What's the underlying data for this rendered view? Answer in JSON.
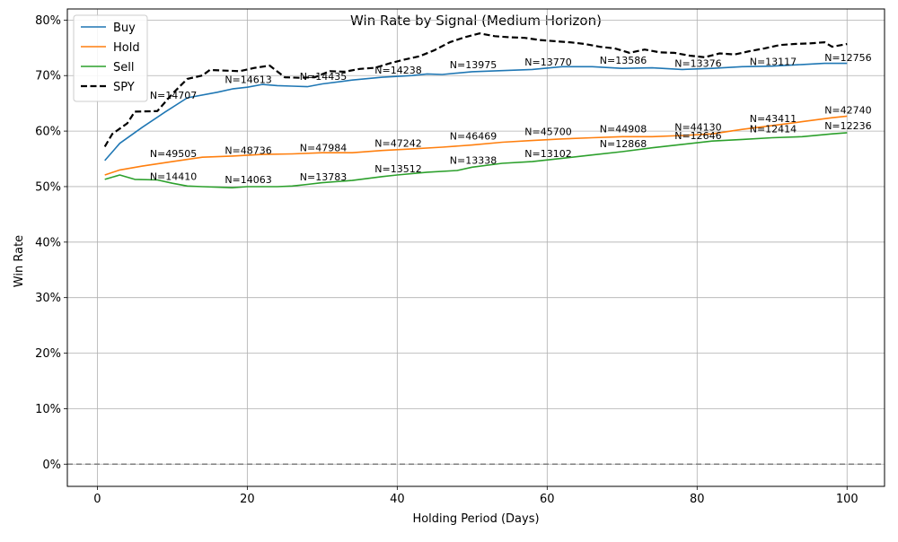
{
  "chart_data": {
    "type": "line",
    "title": "Win Rate by Signal (Medium Horizon)",
    "xlabel": "Holding Period (Days)",
    "ylabel": "Win Rate",
    "xlim": [
      -4,
      105
    ],
    "ylim": [
      -0.04,
      0.82
    ],
    "xticks": [
      0,
      20,
      40,
      60,
      80,
      100
    ],
    "xtick_labels": [
      "0",
      "20",
      "40",
      "60",
      "80",
      "100"
    ],
    "yticks": [
      0,
      0.1,
      0.2,
      0.3,
      0.4,
      0.5,
      0.6,
      0.7,
      0.8
    ],
    "ytick_labels": [
      "0%",
      "10%",
      "20%",
      "30%",
      "40%",
      "50%",
      "60%",
      "70%",
      "80%"
    ],
    "grid": true,
    "legend_position": "top-left",
    "reference_line": {
      "y": 0,
      "style": "dashed",
      "color": "#808080"
    },
    "series": [
      {
        "name": "Buy",
        "color": "#1f77b4",
        "style": "solid",
        "points": [
          [
            1,
            0.547
          ],
          [
            3,
            0.578
          ],
          [
            6,
            0.607
          ],
          [
            9,
            0.634
          ],
          [
            12,
            0.66
          ],
          [
            16,
            0.67
          ],
          [
            18,
            0.676
          ],
          [
            20,
            0.679
          ],
          [
            22,
            0.684
          ],
          [
            24,
            0.682
          ],
          [
            26,
            0.681
          ],
          [
            28,
            0.68
          ],
          [
            30,
            0.685
          ],
          [
            34,
            0.692
          ],
          [
            38,
            0.697
          ],
          [
            42,
            0.7
          ],
          [
            44,
            0.703
          ],
          [
            46,
            0.702
          ],
          [
            50,
            0.707
          ],
          [
            54,
            0.709
          ],
          [
            58,
            0.711
          ],
          [
            62,
            0.716
          ],
          [
            66,
            0.716
          ],
          [
            70,
            0.713
          ],
          [
            74,
            0.714
          ],
          [
            78,
            0.711
          ],
          [
            82,
            0.713
          ],
          [
            86,
            0.716
          ],
          [
            90,
            0.717
          ],
          [
            94,
            0.72
          ],
          [
            97,
            0.722
          ],
          [
            100,
            0.722
          ]
        ]
      },
      {
        "name": "Hold",
        "color": "#ff7f0e",
        "style": "solid",
        "points": [
          [
            1,
            0.521
          ],
          [
            3,
            0.53
          ],
          [
            6,
            0.537
          ],
          [
            10,
            0.545
          ],
          [
            14,
            0.553
          ],
          [
            18,
            0.555
          ],
          [
            22,
            0.558
          ],
          [
            26,
            0.559
          ],
          [
            30,
            0.561
          ],
          [
            34,
            0.561
          ],
          [
            38,
            0.565
          ],
          [
            42,
            0.568
          ],
          [
            46,
            0.571
          ],
          [
            50,
            0.575
          ],
          [
            54,
            0.58
          ],
          [
            58,
            0.583
          ],
          [
            62,
            0.586
          ],
          [
            66,
            0.588
          ],
          [
            70,
            0.59
          ],
          [
            74,
            0.59
          ],
          [
            78,
            0.592
          ],
          [
            82,
            0.595
          ],
          [
            86,
            0.603
          ],
          [
            90,
            0.61
          ],
          [
            94,
            0.617
          ],
          [
            98,
            0.624
          ],
          [
            100,
            0.627
          ]
        ]
      },
      {
        "name": "Sell",
        "color": "#2ca02c",
        "style": "solid",
        "points": [
          [
            1,
            0.513
          ],
          [
            3,
            0.521
          ],
          [
            5,
            0.513
          ],
          [
            8,
            0.512
          ],
          [
            10,
            0.506
          ],
          [
            12,
            0.501
          ],
          [
            14,
            0.5
          ],
          [
            16,
            0.499
          ],
          [
            18,
            0.498
          ],
          [
            20,
            0.5
          ],
          [
            22,
            0.5
          ],
          [
            24,
            0.5
          ],
          [
            26,
            0.501
          ],
          [
            28,
            0.504
          ],
          [
            30,
            0.507
          ],
          [
            34,
            0.511
          ],
          [
            38,
            0.518
          ],
          [
            40,
            0.521
          ],
          [
            44,
            0.526
          ],
          [
            48,
            0.529
          ],
          [
            50,
            0.535
          ],
          [
            54,
            0.542
          ],
          [
            58,
            0.545
          ],
          [
            62,
            0.551
          ],
          [
            66,
            0.557
          ],
          [
            70,
            0.563
          ],
          [
            74,
            0.57
          ],
          [
            78,
            0.576
          ],
          [
            82,
            0.582
          ],
          [
            86,
            0.585
          ],
          [
            90,
            0.588
          ],
          [
            94,
            0.59
          ],
          [
            98,
            0.595
          ],
          [
            100,
            0.597
          ]
        ]
      },
      {
        "name": "SPY",
        "color": "#000000",
        "style": "dashed",
        "points": [
          [
            1,
            0.572
          ],
          [
            2,
            0.595
          ],
          [
            4,
            0.614
          ],
          [
            5,
            0.635
          ],
          [
            8,
            0.636
          ],
          [
            10,
            0.667
          ],
          [
            12,
            0.694
          ],
          [
            14,
            0.7
          ],
          [
            15,
            0.71
          ],
          [
            19,
            0.708
          ],
          [
            21,
            0.714
          ],
          [
            23,
            0.718
          ],
          [
            25,
            0.697
          ],
          [
            27,
            0.696
          ],
          [
            29,
            0.697
          ],
          [
            31,
            0.708
          ],
          [
            33,
            0.707
          ],
          [
            35,
            0.712
          ],
          [
            37,
            0.714
          ],
          [
            39,
            0.722
          ],
          [
            41,
            0.729
          ],
          [
            43,
            0.735
          ],
          [
            45,
            0.746
          ],
          [
            47,
            0.76
          ],
          [
            49,
            0.769
          ],
          [
            51,
            0.776
          ],
          [
            53,
            0.771
          ],
          [
            55,
            0.769
          ],
          [
            57,
            0.768
          ],
          [
            59,
            0.764
          ],
          [
            61,
            0.762
          ],
          [
            63,
            0.76
          ],
          [
            65,
            0.757
          ],
          [
            67,
            0.752
          ],
          [
            69,
            0.749
          ],
          [
            71,
            0.741
          ],
          [
            73,
            0.747
          ],
          [
            75,
            0.742
          ],
          [
            77,
            0.741
          ],
          [
            79,
            0.736
          ],
          [
            81,
            0.733
          ],
          [
            83,
            0.74
          ],
          [
            85,
            0.738
          ],
          [
            87,
            0.744
          ],
          [
            89,
            0.749
          ],
          [
            91,
            0.755
          ],
          [
            93,
            0.757
          ],
          [
            95,
            0.758
          ],
          [
            97,
            0.76
          ],
          [
            98,
            0.752
          ],
          [
            100,
            0.757
          ]
        ]
      }
    ],
    "annotations": [
      {
        "x": 7,
        "y": 0.658,
        "text": "N=14707"
      },
      {
        "x": 7,
        "y": 0.553,
        "text": "N=49505"
      },
      {
        "x": 7,
        "y": 0.512,
        "text": "N=14410"
      },
      {
        "x": 17,
        "y": 0.687,
        "text": "N=14613"
      },
      {
        "x": 17,
        "y": 0.559,
        "text": "N=48736"
      },
      {
        "x": 17,
        "y": 0.506,
        "text": "N=14063"
      },
      {
        "x": 27,
        "y": 0.692,
        "text": "N=14435"
      },
      {
        "x": 27,
        "y": 0.564,
        "text": "N=47984"
      },
      {
        "x": 27,
        "y": 0.511,
        "text": "N=13783"
      },
      {
        "x": 37,
        "y": 0.704,
        "text": "N=14238"
      },
      {
        "x": 37,
        "y": 0.572,
        "text": "N=47242"
      },
      {
        "x": 37,
        "y": 0.526,
        "text": "N=13512"
      },
      {
        "x": 47,
        "y": 0.713,
        "text": "N=13975"
      },
      {
        "x": 47,
        "y": 0.585,
        "text": "N=46469"
      },
      {
        "x": 47,
        "y": 0.541,
        "text": "N=13338"
      },
      {
        "x": 57,
        "y": 0.718,
        "text": "N=13770"
      },
      {
        "x": 57,
        "y": 0.593,
        "text": "N=45700"
      },
      {
        "x": 57,
        "y": 0.553,
        "text": "N=13102"
      },
      {
        "x": 67,
        "y": 0.721,
        "text": "N=13586"
      },
      {
        "x": 67,
        "y": 0.598,
        "text": "N=44908"
      },
      {
        "x": 67,
        "y": 0.571,
        "text": "N=12868"
      },
      {
        "x": 77,
        "y": 0.716,
        "text": "N=13376"
      },
      {
        "x": 77,
        "y": 0.601,
        "text": "N=44130"
      },
      {
        "x": 77,
        "y": 0.586,
        "text": "N=12646"
      },
      {
        "x": 87,
        "y": 0.719,
        "text": "N=13117"
      },
      {
        "x": 87,
        "y": 0.616,
        "text": "N=43411"
      },
      {
        "x": 87,
        "y": 0.598,
        "text": "N=12414"
      },
      {
        "x": 97,
        "y": 0.726,
        "text": "N=12756"
      },
      {
        "x": 97,
        "y": 0.632,
        "text": "N=42740"
      },
      {
        "x": 97,
        "y": 0.603,
        "text": "N=12236"
      }
    ]
  }
}
